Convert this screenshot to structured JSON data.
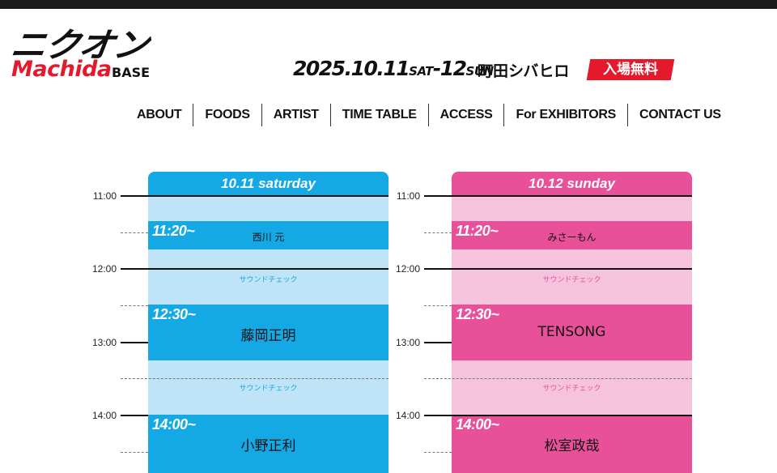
{
  "logo": {
    "kana": "ニクオン",
    "machida": "Machida",
    "base": "BASE"
  },
  "event": {
    "date_main": "2025.10.11",
    "date_day1": "SAT",
    "date_sep": "-12",
    "date_day2": "SUN",
    "venue": "町田シバヒロ",
    "free_label": "入場無料"
  },
  "nav": {
    "items": [
      "ABOUT",
      "FOODS",
      "ARTIST",
      "TIME TABLE",
      "ACCESS",
      "For EXHIBITORS",
      "CONTACT US"
    ]
  },
  "timetable": {
    "hours": [
      "11:00",
      "12:00",
      "13:00",
      "14:00"
    ],
    "days": [
      {
        "header": "10.11 saturday",
        "color": "#14a8e5",
        "light_color": "#bfe4f8",
        "slots": [
          {
            "time": "11:20~",
            "artist": "西川 元"
          },
          {
            "time": "12:30~",
            "artist": "藤岡正明"
          },
          {
            "time": "14:00~",
            "artist": "小野正利"
          }
        ],
        "soundcheck": [
          "サウンドチェック",
          "サウンドチェック"
        ]
      },
      {
        "header": "10.12 sunday",
        "color": "#e8509a",
        "light_color": "#f6c3dc",
        "slots": [
          {
            "time": "11:20~",
            "artist": "みさーもん"
          },
          {
            "time": "12:30~",
            "artist": "TENSONG"
          },
          {
            "time": "14:00~",
            "artist": "松室政哉"
          }
        ],
        "soundcheck": [
          "サウンドチェック",
          "サウンドチェック"
        ]
      }
    ]
  }
}
